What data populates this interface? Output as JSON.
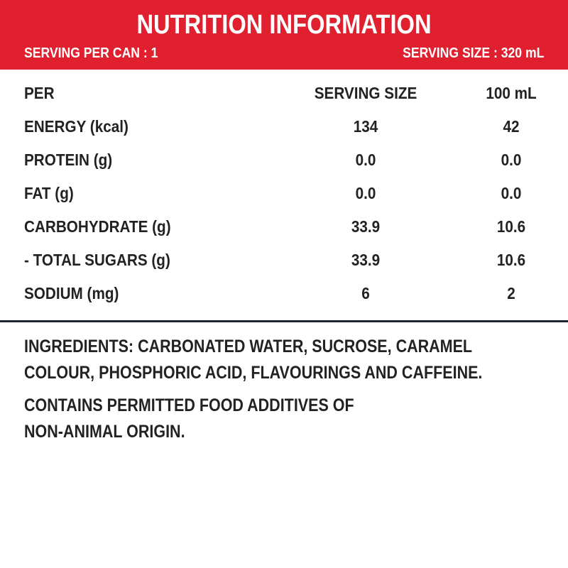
{
  "header": {
    "title": "NUTRITION INFORMATION",
    "serving_per_can": "SERVING PER CAN : 1",
    "serving_size": "SERVING SIZE : 320 mL",
    "background_color": "#e0202e"
  },
  "table": {
    "columns": [
      "PER",
      "SERVING SIZE",
      "100 mL"
    ],
    "rows": [
      [
        "ENERGY (kcal)",
        "134",
        "42"
      ],
      [
        "PROTEIN (g)",
        "0.0",
        "0.0"
      ],
      [
        "FAT (g)",
        "0.0",
        "0.0"
      ],
      [
        "CARBOHYDRATE (g)",
        "33.9",
        "10.6"
      ],
      [
        "- TOTAL SUGARS (g)",
        "33.9",
        "10.6"
      ],
      [
        "SODIUM (mg)",
        "6",
        "2"
      ]
    ]
  },
  "ingredients": {
    "line1": "INGREDIENTS: CARBONATED WATER, SUCROSE, CARAMEL",
    "line2": "COLOUR, PHOSPHORIC ACID, FLAVOURINGS AND CAFFEINE."
  },
  "notice": {
    "line1": "CONTAINS PERMITTED FOOD ADDITIVES OF",
    "line2": "NON-ANIMAL ORIGIN."
  }
}
